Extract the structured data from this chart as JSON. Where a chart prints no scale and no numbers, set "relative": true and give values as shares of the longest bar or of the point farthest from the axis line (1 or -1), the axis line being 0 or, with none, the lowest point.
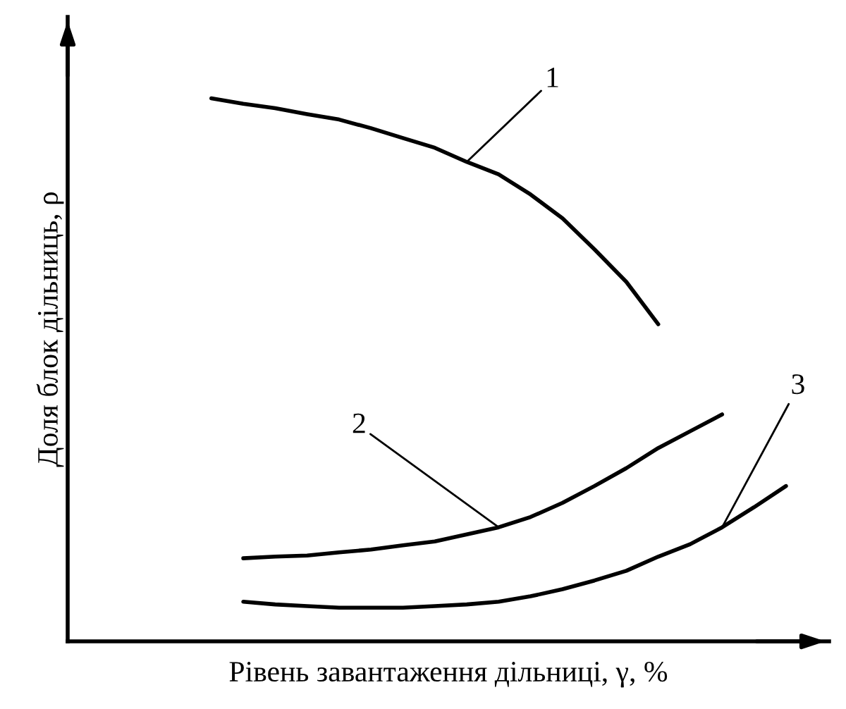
{
  "chart_data": {
    "type": "line",
    "relative": true,
    "xlabel": "Рівень завантаження дільниці, γ, %",
    "ylabel": "Доля блок дільниць, ρ",
    "tick_labels": false,
    "legend": false,
    "marker": "none",
    "line_style": "solid",
    "categories": [
      null,
      null,
      null,
      null,
      null,
      null,
      null,
      null,
      null,
      null,
      null,
      null,
      null,
      null,
      null,
      null,
      null,
      null,
      null
    ],
    "series": [
      {
        "color": "#000000",
        "values": [
          1.0,
          0.99,
          0.982,
          0.971,
          0.961,
          0.945,
          0.927,
          0.909,
          0.883,
          0.86,
          0.823,
          0.779,
          0.722,
          0.662,
          0.584,
          null,
          null,
          null,
          null
        ]
      },
      {
        "color": "#000000",
        "values": [
          null,
          0.153,
          0.156,
          0.158,
          0.164,
          0.169,
          0.177,
          0.184,
          0.197,
          0.21,
          0.229,
          0.255,
          0.286,
          0.319,
          0.356,
          0.387,
          0.418,
          null,
          null
        ]
      },
      {
        "color": "#000000",
        "values": [
          null,
          0.073,
          0.068,
          0.065,
          0.062,
          0.062,
          0.062,
          0.065,
          0.068,
          0.073,
          0.083,
          0.096,
          0.112,
          0.13,
          0.156,
          0.179,
          0.21,
          0.247,
          0.286
        ]
      }
    ],
    "annotations": [
      "1",
      "2",
      "3"
    ]
  }
}
